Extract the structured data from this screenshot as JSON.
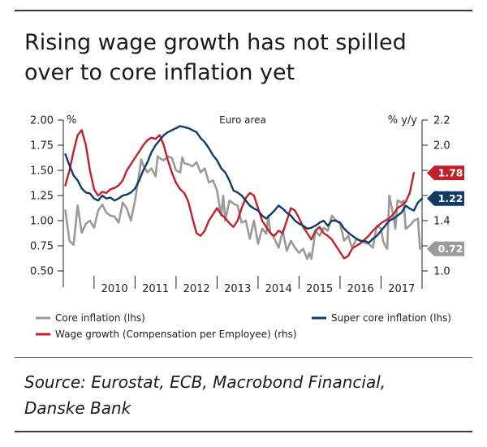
{
  "title_lines": [
    "Rising wage growth has not spilled",
    "over to core inflation yet"
  ],
  "source_lines": [
    "Source: Eurostat, ECB, Macrobond Financial,",
    "Danske Bank"
  ],
  "chart_data": {
    "type": "line",
    "title": "Euro area",
    "left_axis_label": "%",
    "right_axis_label": "% y/y",
    "left_ylim": [
      0.5,
      2.0
    ],
    "right_ylim": [
      1.0,
      2.2
    ],
    "left_ticks": [
      "0.50",
      "0.75",
      "1.00",
      "1.25",
      "1.50",
      "1.75",
      "2.00"
    ],
    "right_ticks": [
      "1.0",
      "1.2",
      "1.4",
      "1.6",
      "1.8",
      "2.0",
      "2.2"
    ],
    "x_range": [
      2009.25,
      2018.0
    ],
    "x_ticks": [
      "2010",
      "2011",
      "2012",
      "2013",
      "2014",
      "2015",
      "2016",
      "2017"
    ],
    "colors": {
      "core": "#9a9a9a",
      "super": "#123a66",
      "wage": "#c0212b"
    },
    "series": [
      {
        "name": "Core inflation (lhs)",
        "axis": "left",
        "color": "#9a9a9a",
        "end_label": "0.72",
        "points": [
          [
            2009.3,
            1.1
          ],
          [
            2009.4,
            0.8
          ],
          [
            2009.5,
            0.76
          ],
          [
            2009.6,
            1.15
          ],
          [
            2009.7,
            0.88
          ],
          [
            2009.8,
            0.97
          ],
          [
            2009.9,
            1.0
          ],
          [
            2010.0,
            0.93
          ],
          [
            2010.1,
            1.1
          ],
          [
            2010.2,
            1.16
          ],
          [
            2010.3,
            1.08
          ],
          [
            2010.4,
            1.05
          ],
          [
            2010.5,
            1.04
          ],
          [
            2010.6,
            0.98
          ],
          [
            2010.7,
            1.18
          ],
          [
            2010.8,
            1.12
          ],
          [
            2010.9,
            1.0
          ],
          [
            2011.0,
            1.2
          ],
          [
            2011.1,
            1.47
          ],
          [
            2011.15,
            1.61
          ],
          [
            2011.2,
            1.55
          ],
          [
            2011.3,
            1.48
          ],
          [
            2011.4,
            1.52
          ],
          [
            2011.5,
            1.44
          ],
          [
            2011.55,
            1.64
          ],
          [
            2011.6,
            1.62
          ],
          [
            2011.7,
            1.6
          ],
          [
            2011.8,
            1.64
          ],
          [
            2011.9,
            1.62
          ],
          [
            2012.0,
            1.5
          ],
          [
            2012.1,
            1.48
          ],
          [
            2012.15,
            1.63
          ],
          [
            2012.2,
            1.57
          ],
          [
            2012.3,
            1.56
          ],
          [
            2012.4,
            1.54
          ],
          [
            2012.5,
            1.58
          ],
          [
            2012.6,
            1.48
          ],
          [
            2012.7,
            1.52
          ],
          [
            2012.8,
            1.38
          ],
          [
            2012.9,
            1.4
          ],
          [
            2013.0,
            1.3
          ],
          [
            2013.1,
            1.05
          ],
          [
            2013.15,
            1.25
          ],
          [
            2013.2,
            1.0
          ],
          [
            2013.3,
            1.2
          ],
          [
            2013.4,
            1.17
          ],
          [
            2013.5,
            1.15
          ],
          [
            2013.6,
            0.98
          ],
          [
            2013.7,
            1.0
          ],
          [
            2013.8,
            0.82
          ],
          [
            2013.9,
            1.0
          ],
          [
            2014.0,
            0.77
          ],
          [
            2014.1,
            0.92
          ],
          [
            2014.2,
            0.87
          ],
          [
            2014.25,
            1.05
          ],
          [
            2014.3,
            0.88
          ],
          [
            2014.4,
            0.82
          ],
          [
            2014.5,
            0.73
          ],
          [
            2014.6,
            0.9
          ],
          [
            2014.7,
            0.7
          ],
          [
            2014.8,
            0.8
          ],
          [
            2014.9,
            0.73
          ],
          [
            2015.0,
            0.68
          ],
          [
            2015.1,
            0.72
          ],
          [
            2015.2,
            0.62
          ],
          [
            2015.25,
            0.68
          ],
          [
            2015.3,
            0.62
          ],
          [
            2015.4,
            0.9
          ],
          [
            2015.5,
            0.85
          ],
          [
            2015.6,
            0.93
          ],
          [
            2015.7,
            0.9
          ],
          [
            2015.8,
            1.05
          ],
          [
            2015.9,
            1.0
          ],
          [
            2016.0,
            0.97
          ],
          [
            2016.1,
            0.8
          ],
          [
            2016.2,
            0.85
          ],
          [
            2016.25,
            0.78
          ],
          [
            2016.3,
            0.73
          ],
          [
            2016.4,
            0.82
          ],
          [
            2016.5,
            0.8
          ],
          [
            2016.6,
            0.78
          ],
          [
            2016.7,
            0.77
          ],
          [
            2016.8,
            0.73
          ],
          [
            2016.85,
            0.85
          ],
          [
            2016.9,
            0.95
          ],
          [
            2017.0,
            0.92
          ],
          [
            2017.05,
            0.8
          ],
          [
            2017.1,
            0.75
          ],
          [
            2017.15,
            0.72
          ],
          [
            2017.2,
            1.25
          ],
          [
            2017.3,
            1.05
          ],
          [
            2017.35,
            0.92
          ],
          [
            2017.4,
            1.2
          ],
          [
            2017.5,
            1.18
          ],
          [
            2017.55,
            1.2
          ],
          [
            2017.6,
            0.92
          ],
          [
            2017.7,
            0.95
          ],
          [
            2017.8,
            1.0
          ],
          [
            2017.9,
            1.02
          ],
          [
            2017.95,
            0.72
          ]
        ]
      },
      {
        "name": "Super core inflation (lhs)",
        "axis": "left",
        "color": "#123a66",
        "end_label": "1.22",
        "points": [
          [
            2009.3,
            1.66
          ],
          [
            2009.4,
            1.55
          ],
          [
            2009.5,
            1.45
          ],
          [
            2009.6,
            1.4
          ],
          [
            2009.7,
            1.32
          ],
          [
            2009.8,
            1.28
          ],
          [
            2009.9,
            1.27
          ],
          [
            2010.0,
            1.22
          ],
          [
            2010.1,
            1.2
          ],
          [
            2010.2,
            1.25
          ],
          [
            2010.3,
            1.22
          ],
          [
            2010.4,
            1.23
          ],
          [
            2010.5,
            1.2
          ],
          [
            2010.6,
            1.22
          ],
          [
            2010.7,
            1.25
          ],
          [
            2010.8,
            1.26
          ],
          [
            2010.9,
            1.28
          ],
          [
            2011.0,
            1.32
          ],
          [
            2011.1,
            1.4
          ],
          [
            2011.2,
            1.5
          ],
          [
            2011.3,
            1.58
          ],
          [
            2011.4,
            1.68
          ],
          [
            2011.5,
            1.75
          ],
          [
            2011.6,
            1.8
          ],
          [
            2011.7,
            1.85
          ],
          [
            2011.8,
            1.88
          ],
          [
            2011.9,
            1.9
          ],
          [
            2012.0,
            1.92
          ],
          [
            2012.1,
            1.94
          ],
          [
            2012.2,
            1.93
          ],
          [
            2012.3,
            1.92
          ],
          [
            2012.4,
            1.9
          ],
          [
            2012.5,
            1.88
          ],
          [
            2012.6,
            1.82
          ],
          [
            2012.7,
            1.78
          ],
          [
            2012.8,
            1.72
          ],
          [
            2012.9,
            1.65
          ],
          [
            2013.0,
            1.6
          ],
          [
            2013.1,
            1.52
          ],
          [
            2013.2,
            1.48
          ],
          [
            2013.3,
            1.4
          ],
          [
            2013.4,
            1.3
          ],
          [
            2013.5,
            1.28
          ],
          [
            2013.6,
            1.25
          ],
          [
            2013.7,
            1.2
          ],
          [
            2013.8,
            1.15
          ],
          [
            2013.9,
            1.12
          ],
          [
            2014.0,
            1.1
          ],
          [
            2014.1,
            1.05
          ],
          [
            2014.2,
            1.02
          ],
          [
            2014.3,
            1.06
          ],
          [
            2014.4,
            1.1
          ],
          [
            2014.5,
            1.15
          ],
          [
            2014.6,
            1.12
          ],
          [
            2014.7,
            1.08
          ],
          [
            2014.8,
            1.05
          ],
          [
            2014.9,
            1.0
          ],
          [
            2015.0,
            0.97
          ],
          [
            2015.1,
            0.95
          ],
          [
            2015.2,
            0.92
          ],
          [
            2015.3,
            0.93
          ],
          [
            2015.4,
            0.95
          ],
          [
            2015.5,
            0.98
          ],
          [
            2015.6,
            1.0
          ],
          [
            2015.7,
            0.95
          ],
          [
            2015.8,
            1.0
          ],
          [
            2015.9,
            1.0
          ],
          [
            2016.0,
            0.98
          ],
          [
            2016.1,
            0.92
          ],
          [
            2016.2,
            0.88
          ],
          [
            2016.3,
            0.85
          ],
          [
            2016.4,
            0.82
          ],
          [
            2016.5,
            0.8
          ],
          [
            2016.6,
            0.8
          ],
          [
            2016.7,
            0.78
          ],
          [
            2016.8,
            0.82
          ],
          [
            2016.9,
            0.85
          ],
          [
            2017.0,
            0.9
          ],
          [
            2017.1,
            0.95
          ],
          [
            2017.2,
            1.0
          ],
          [
            2017.3,
            1.02
          ],
          [
            2017.4,
            1.05
          ],
          [
            2017.5,
            1.08
          ],
          [
            2017.6,
            1.15
          ],
          [
            2017.7,
            1.12
          ],
          [
            2017.8,
            1.1
          ],
          [
            2017.9,
            1.18
          ],
          [
            2018.0,
            1.22
          ]
        ]
      },
      {
        "name": "Wage growth (Compensation per Employee) (rhs)",
        "axis": "right",
        "color": "#c0212b",
        "end_label": "1.78",
        "points": [
          [
            2009.3,
            1.68
          ],
          [
            2009.4,
            1.8
          ],
          [
            2009.5,
            1.95
          ],
          [
            2009.6,
            2.08
          ],
          [
            2009.7,
            2.12
          ],
          [
            2009.8,
            2.0
          ],
          [
            2009.9,
            1.8
          ],
          [
            2010.0,
            1.65
          ],
          [
            2010.1,
            1.6
          ],
          [
            2010.2,
            1.63
          ],
          [
            2010.3,
            1.62
          ],
          [
            2010.4,
            1.65
          ],
          [
            2010.5,
            1.66
          ],
          [
            2010.6,
            1.68
          ],
          [
            2010.7,
            1.72
          ],
          [
            2010.8,
            1.8
          ],
          [
            2010.9,
            1.85
          ],
          [
            2011.0,
            1.9
          ],
          [
            2011.1,
            1.95
          ],
          [
            2011.2,
            2.0
          ],
          [
            2011.3,
            2.04
          ],
          [
            2011.4,
            2.06
          ],
          [
            2011.5,
            2.05
          ],
          [
            2011.6,
            2.08
          ],
          [
            2011.7,
            2.0
          ],
          [
            2011.8,
            1.88
          ],
          [
            2011.9,
            1.78
          ],
          [
            2012.0,
            1.7
          ],
          [
            2012.1,
            1.65
          ],
          [
            2012.2,
            1.62
          ],
          [
            2012.3,
            1.55
          ],
          [
            2012.4,
            1.42
          ],
          [
            2012.5,
            1.3
          ],
          [
            2012.6,
            1.28
          ],
          [
            2012.7,
            1.32
          ],
          [
            2012.8,
            1.4
          ],
          [
            2012.9,
            1.45
          ],
          [
            2013.0,
            1.5
          ],
          [
            2013.1,
            1.45
          ],
          [
            2013.2,
            1.42
          ],
          [
            2013.3,
            1.38
          ],
          [
            2013.4,
            1.35
          ],
          [
            2013.5,
            1.4
          ],
          [
            2013.6,
            1.5
          ],
          [
            2013.7,
            1.58
          ],
          [
            2013.8,
            1.62
          ],
          [
            2013.9,
            1.6
          ],
          [
            2014.0,
            1.5
          ],
          [
            2014.1,
            1.4
          ],
          [
            2014.2,
            1.35
          ],
          [
            2014.3,
            1.3
          ],
          [
            2014.4,
            1.28
          ],
          [
            2014.5,
            1.32
          ],
          [
            2014.6,
            1.3
          ],
          [
            2014.7,
            1.4
          ],
          [
            2014.8,
            1.5
          ],
          [
            2014.9,
            1.48
          ],
          [
            2015.0,
            1.42
          ],
          [
            2015.1,
            1.35
          ],
          [
            2015.2,
            1.3
          ],
          [
            2015.3,
            1.25
          ],
          [
            2015.4,
            1.32
          ],
          [
            2015.5,
            1.35
          ],
          [
            2015.6,
            1.3
          ],
          [
            2015.7,
            1.28
          ],
          [
            2015.8,
            1.25
          ],
          [
            2015.9,
            1.2
          ],
          [
            2016.0,
            1.15
          ],
          [
            2016.1,
            1.1
          ],
          [
            2016.2,
            1.12
          ],
          [
            2016.3,
            1.18
          ],
          [
            2016.4,
            1.2
          ],
          [
            2016.5,
            1.22
          ],
          [
            2016.6,
            1.25
          ],
          [
            2016.7,
            1.28
          ],
          [
            2016.8,
            1.32
          ],
          [
            2016.9,
            1.35
          ],
          [
            2017.0,
            1.38
          ],
          [
            2017.1,
            1.4
          ],
          [
            2017.2,
            1.42
          ],
          [
            2017.3,
            1.45
          ],
          [
            2017.4,
            1.5
          ],
          [
            2017.5,
            1.52
          ],
          [
            2017.6,
            1.55
          ],
          [
            2017.7,
            1.62
          ],
          [
            2017.8,
            1.78
          ]
        ]
      }
    ],
    "legend": {
      "placement": "bottom",
      "items": [
        {
          "label": "Core inflation (lhs)",
          "color": "#9a9a9a"
        },
        {
          "label": "Super core inflation (lhs)",
          "color": "#123a66"
        },
        {
          "label": "Wage growth (Compensation per Employee) (rhs)",
          "color": "#c0212b"
        }
      ]
    }
  }
}
